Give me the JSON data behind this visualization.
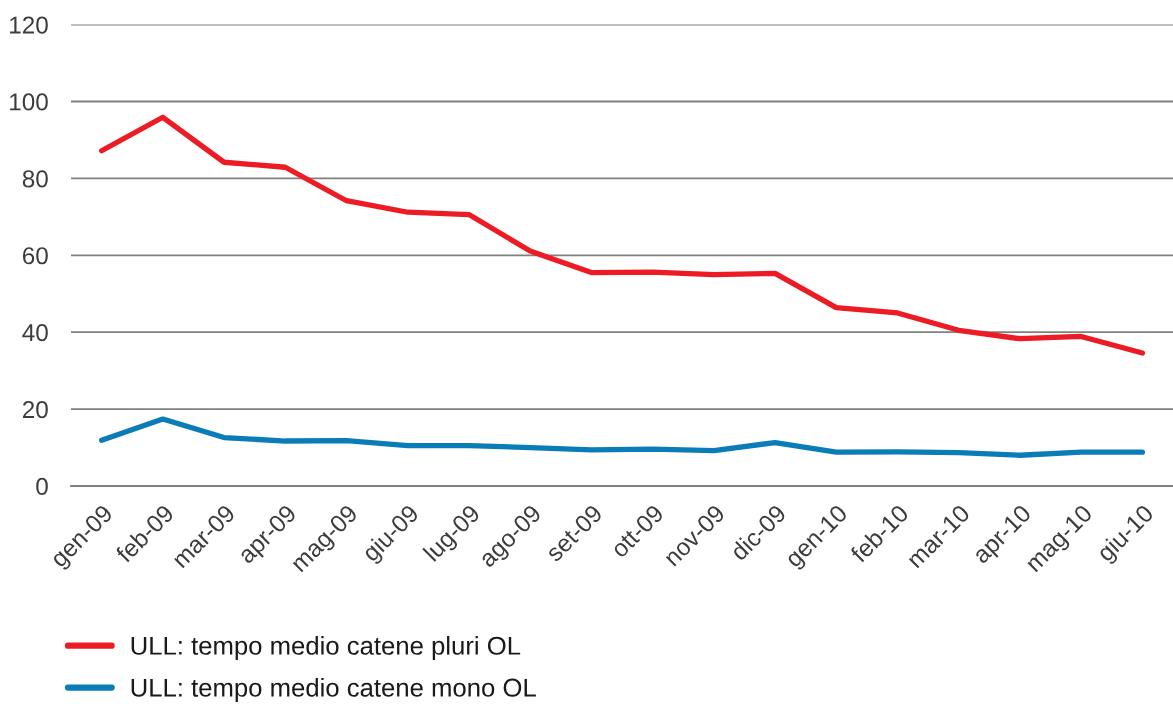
{
  "chart_data": {
    "type": "line",
    "categories": [
      "gen-09",
      "feb-09",
      "mar-09",
      "apr-09",
      "mag-09",
      "giu-09",
      "lug-09",
      "ago-09",
      "set-09",
      "ott-09",
      "nov-09",
      "dic-09",
      "gen-10",
      "feb-10",
      "mar-10",
      "apr-10",
      "mag-10",
      "giu-10"
    ],
    "series": [
      {
        "name": "ULL: tempo medio catene pluri OL",
        "color": "#ed1c24",
        "values": [
          87.2,
          95.9,
          84.2,
          82.9,
          74.2,
          71.2,
          70.6,
          61.1,
          55.5,
          55.6,
          55.0,
          55.3,
          46.4,
          45.0,
          40.5,
          38.3,
          38.9,
          34.6
        ]
      },
      {
        "name": "ULL: tempo medio catene mono OL",
        "color": "#0a7db8",
        "values": [
          11.9,
          17.4,
          12.6,
          11.7,
          11.8,
          10.5,
          10.5,
          10.0,
          9.4,
          9.6,
          9.2,
          11.3,
          8.8,
          8.9,
          8.7,
          8.0,
          8.8,
          8.8
        ]
      }
    ],
    "ylim": [
      0,
      120
    ],
    "yticks": [
      0,
      20,
      40,
      60,
      80,
      100,
      120
    ],
    "grid": "y",
    "legend": "bottom",
    "line_style": "solid"
  }
}
